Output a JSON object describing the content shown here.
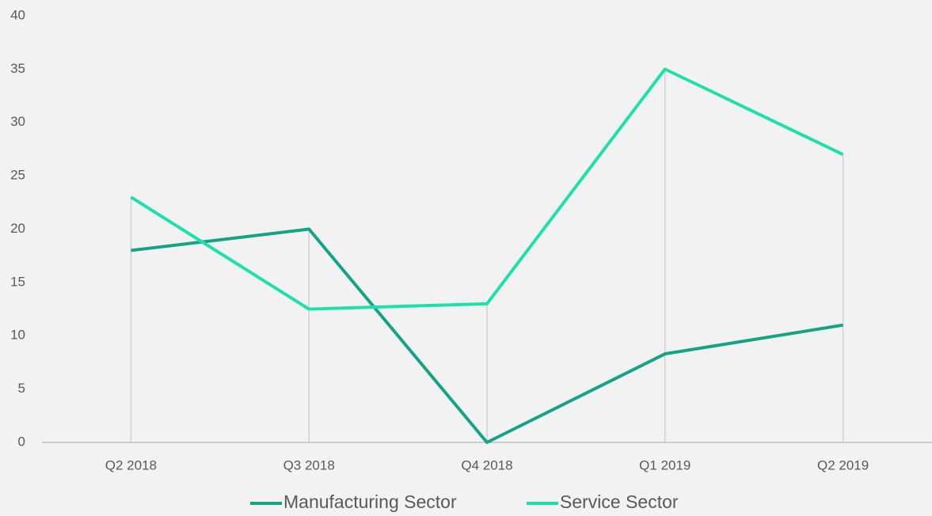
{
  "chart_data": {
    "type": "line",
    "categories": [
      "Q2 2018",
      "Q3 2018",
      "Q4 2018",
      "Q1 2019",
      "Q2 2019"
    ],
    "series": [
      {
        "name": "Manufacturing Sector",
        "color": "#14a386",
        "values": [
          18,
          20,
          0,
          8.3,
          11
        ]
      },
      {
        "name": "Service Sector",
        "color": "#1ee0ac",
        "values": [
          23,
          12.5,
          13,
          35,
          27
        ]
      }
    ],
    "ylim": [
      0,
      40
    ],
    "yticks": [
      0,
      5,
      10,
      15,
      20,
      25,
      30,
      35,
      40
    ],
    "drop_lines": true,
    "legend": "bottom"
  }
}
